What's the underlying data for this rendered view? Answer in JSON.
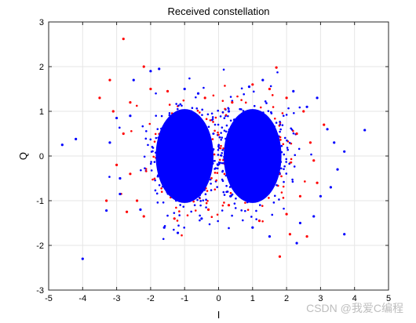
{
  "chart_data": {
    "type": "scatter",
    "title": "Received constellation",
    "xlabel": "I",
    "ylabel": "Q",
    "xlim": [
      -5,
      5
    ],
    "ylim": [
      -3,
      3
    ],
    "xticks": [
      "-5",
      "-4",
      "-3",
      "-2",
      "-1",
      "0",
      "1",
      "2",
      "3",
      "4",
      "5"
    ],
    "yticks": [
      "3",
      "2",
      "1",
      "0",
      "-1",
      "-2",
      "-3"
    ],
    "grid": true,
    "legend": "none",
    "colors": {
      "series_a": "#ff0000",
      "series_b": "#0000ff"
    },
    "clusters": [
      {
        "center": [
          -1.0,
          0.0
        ],
        "extent_i": [
          -3.5,
          0.5
        ],
        "extent_q": [
          -1.8,
          2.1
        ]
      },
      {
        "center": [
          1.0,
          0.0
        ],
        "extent_i": [
          -0.3,
          3.6
        ],
        "extent_q": [
          -1.9,
          2.0
        ]
      }
    ],
    "core_ellipses": [
      {
        "center": [
          -1.0,
          0.0
        ],
        "radius_i": 0.85,
        "radius_q": 1.05
      },
      {
        "center": [
          1.0,
          0.0
        ],
        "radius_i": 0.85,
        "radius_q": 1.05
      }
    ],
    "series": [
      {
        "color": "#ff0000",
        "points": [
          [
            -2.8,
            2.62
          ],
          [
            -2.2,
            2.0
          ],
          [
            -3.2,
            1.7
          ],
          [
            -3.5,
            1.3
          ],
          [
            -3.1,
            1.0
          ],
          [
            -2.6,
            1.2
          ],
          [
            -2.0,
            1.5
          ],
          [
            -1.5,
            1.45
          ],
          [
            -2.4,
            -1.0
          ],
          [
            -2.7,
            -1.25
          ],
          [
            -3.3,
            -1.0
          ],
          [
            -2.6,
            -0.4
          ],
          [
            -1.3,
            -1.4
          ],
          [
            -2.2,
            -1.35
          ],
          [
            -0.4,
            1.3
          ],
          [
            -0.3,
            -1.2
          ],
          [
            -2.8,
            0.5
          ],
          [
            -3.0,
            -0.2
          ],
          [
            1.0,
            1.6
          ],
          [
            1.5,
            1.5
          ],
          [
            2.0,
            1.3
          ],
          [
            1.7,
            1.98
          ],
          [
            2.5,
            1.0
          ],
          [
            2.3,
            0.5
          ],
          [
            2.8,
            -0.1
          ],
          [
            2.4,
            -0.9
          ],
          [
            2.0,
            -1.3
          ],
          [
            1.8,
            -2.25
          ],
          [
            2.6,
            -1.8
          ],
          [
            2.1,
            -1.75
          ],
          [
            0.3,
            -1.1
          ],
          [
            0.4,
            1.2
          ],
          [
            2.7,
            0.3
          ],
          [
            1.2,
            -1.45
          ],
          [
            2.9,
            -0.6
          ],
          [
            3.1,
            0.7
          ]
        ]
      },
      {
        "color": "#0000ff",
        "points": [
          [
            -4.6,
            0.25
          ],
          [
            -4.2,
            0.38
          ],
          [
            -4.0,
            -2.3
          ],
          [
            -3.3,
            -1.22
          ],
          [
            -3.0,
            0.85
          ],
          [
            -2.9,
            -0.85
          ],
          [
            -2.5,
            1.7
          ],
          [
            -2.0,
            1.9
          ],
          [
            -1.75,
            1.95
          ],
          [
            -1.2,
            -1.72
          ],
          [
            -1.6,
            -1.6
          ],
          [
            -2.3,
            -1.2
          ],
          [
            -3.2,
            0.3
          ],
          [
            -2.9,
            -0.5
          ],
          [
            -0.6,
            1.4
          ],
          [
            -0.5,
            -1.4
          ],
          [
            -2.6,
            0.9
          ],
          [
            -1.0,
            1.5
          ],
          [
            0.2,
            0.0
          ],
          [
            0.9,
            1.55
          ],
          [
            1.3,
            1.7
          ],
          [
            2.2,
            1.45
          ],
          [
            2.6,
            1.1
          ],
          [
            3.2,
            0.6
          ],
          [
            3.4,
            0.3
          ],
          [
            3.5,
            -0.3
          ],
          [
            3.0,
            -0.9
          ],
          [
            2.8,
            -1.35
          ],
          [
            2.4,
            -1.5
          ],
          [
            1.5,
            -1.8
          ],
          [
            2.3,
            -1.95
          ],
          [
            3.7,
            -1.75
          ],
          [
            3.7,
            0.1
          ],
          [
            4.3,
            0.58
          ],
          [
            3.3,
            -0.7
          ],
          [
            1.0,
            -1.6
          ],
          [
            2.9,
            1.3
          ],
          [
            0.3,
            1.0
          ],
          [
            0.35,
            -0.9
          ]
        ]
      }
    ]
  },
  "watermark": "CSDN @我爱C编程"
}
